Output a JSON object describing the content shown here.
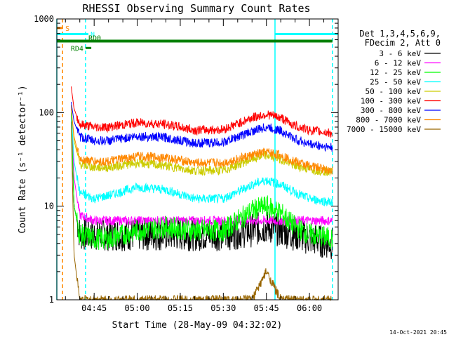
{
  "chart_data": {
    "type": "line",
    "title": "RHESSI Observing Summary Count Rates",
    "xlabel": "Start Time (28-May-09 04:32:02)",
    "ylabel": "Count Rate (s⁻¹ detector⁻¹)",
    "xlim": [
      "04:32",
      "06:10"
    ],
    "ylim": [
      1,
      1000
    ],
    "yscale": "log",
    "x_ticks": [
      "04:45",
      "05:00",
      "05:15",
      "05:30",
      "05:45",
      "06:00"
    ],
    "y_ticks": [
      "1",
      "10",
      "100",
      "1000"
    ],
    "grid": false,
    "legend_position": "right",
    "legend_header": [
      "Det 1,3,4,5,6,9,",
      "FDecim 2, Att 0"
    ],
    "footer_timestamp": "14-Oct-2021 20:45",
    "series": [
      {
        "name": "3 - 6 keV",
        "color": "#000000",
        "x": [
          "04:37",
          "04:38",
          "04:40",
          "04:45",
          "04:50",
          "05:00",
          "05:10",
          "05:20",
          "05:30",
          "05:40",
          "05:45",
          "05:50",
          "05:55",
          "06:00",
          "06:08"
        ],
        "y": [
          100,
          10,
          5,
          5,
          5,
          5,
          5,
          5,
          5,
          5.5,
          6,
          5.5,
          5,
          4.5,
          4
        ]
      },
      {
        "name": "6 - 12 keV",
        "color": "#ff00ff",
        "x": [
          "04:37",
          "04:38",
          "04:40",
          "04:45",
          "04:50",
          "05:00",
          "05:10",
          "05:20",
          "05:30",
          "05:40",
          "05:45",
          "05:50",
          "05:55",
          "06:00",
          "06:08"
        ],
        "y": [
          120,
          20,
          8,
          7,
          7,
          7,
          7,
          7,
          7,
          7,
          7,
          7,
          7,
          7,
          7
        ]
      },
      {
        "name": "12 - 25 keV",
        "color": "#00ff00",
        "x": [
          "04:37",
          "04:38",
          "04:40",
          "04:45",
          "04:50",
          "05:00",
          "05:10",
          "05:20",
          "05:30",
          "05:40",
          "05:45",
          "05:50",
          "05:55",
          "06:00",
          "06:08"
        ],
        "y": [
          100,
          10,
          5,
          4.5,
          4.5,
          5.5,
          6,
          5.5,
          5.5,
          9,
          10,
          8.5,
          6,
          5,
          4.5
        ]
      },
      {
        "name": "25 - 50 keV",
        "color": "#00ffff",
        "x": [
          "04:37",
          "04:38",
          "04:40",
          "04:45",
          "04:50",
          "05:00",
          "05:10",
          "05:20",
          "05:30",
          "05:40",
          "05:45",
          "05:50",
          "05:55",
          "06:00",
          "06:08"
        ],
        "y": [
          110,
          30,
          14,
          12,
          13,
          16,
          15,
          12,
          12,
          17,
          19,
          17,
          14,
          12,
          11
        ]
      },
      {
        "name": "50 - 100 keV",
        "color": "#cccc00",
        "x": [
          "04:37",
          "04:38",
          "04:40",
          "04:45",
          "04:50",
          "05:00",
          "05:10",
          "05:20",
          "05:30",
          "05:40",
          "05:45",
          "05:50",
          "05:55",
          "06:00",
          "06:08"
        ],
        "y": [
          120,
          50,
          28,
          26,
          26,
          29,
          27,
          24,
          24,
          32,
          35,
          32,
          27,
          25,
          23
        ]
      },
      {
        "name": "100 - 300 keV",
        "color": "#ff0000",
        "x": [
          "04:37",
          "04:38",
          "04:40",
          "04:45",
          "04:50",
          "05:00",
          "05:10",
          "05:20",
          "05:30",
          "05:40",
          "05:45",
          "05:50",
          "05:55",
          "06:00",
          "06:08"
        ],
        "y": [
          190,
          110,
          75,
          70,
          70,
          78,
          75,
          65,
          66,
          88,
          96,
          88,
          72,
          65,
          60
        ]
      },
      {
        "name": "300 - 800 keV",
        "color": "#0000ff",
        "x": [
          "04:37",
          "04:38",
          "04:40",
          "04:45",
          "04:50",
          "05:00",
          "05:10",
          "05:20",
          "05:30",
          "05:40",
          "05:45",
          "05:50",
          "05:55",
          "06:00",
          "06:08"
        ],
        "y": [
          130,
          80,
          55,
          50,
          50,
          56,
          54,
          47,
          48,
          63,
          70,
          64,
          52,
          46,
          42
        ]
      },
      {
        "name": "800 - 7000 keV",
        "color": "#ff8800",
        "x": [
          "04:37",
          "04:38",
          "04:40",
          "04:45",
          "04:50",
          "05:00",
          "05:10",
          "05:20",
          "05:30",
          "05:40",
          "05:45",
          "05:50",
          "05:55",
          "06:00",
          "06:08"
        ],
        "y": [
          110,
          55,
          32,
          30,
          30,
          34,
          33,
          29,
          29,
          35,
          38,
          35,
          30,
          27,
          24
        ]
      },
      {
        "name": "7000 - 15000 keV",
        "color": "#996600",
        "x": [
          "04:37",
          "04:38",
          "04:40",
          "05:40",
          "05:45",
          "05:50",
          "06:08"
        ],
        "y": [
          80,
          3,
          1,
          1,
          2,
          1,
          1
        ]
      }
    ],
    "annotations": [
      {
        "label": "S",
        "color": "#ff8800",
        "x": [
          "04:32",
          "04:34"
        ],
        "y": 800
      },
      {
        "label": "N",
        "color": "#00ffff",
        "x": [
          "04:32",
          "04:43"
        ],
        "y": 690
      },
      {
        "label": "RD0",
        "color": "#008000",
        "x": [
          "04:32",
          "06:08"
        ],
        "y": 580
      },
      {
        "label": "RD4",
        "color": "#008000",
        "x": [
          "04:42",
          "04:44"
        ],
        "y": 490
      }
    ],
    "vertical_markers": [
      {
        "x": "04:34",
        "color": "#ff8800",
        "style": "dashed"
      },
      {
        "x": "04:42",
        "color": "#00ffff",
        "style": "dashed"
      },
      {
        "x": "05:48",
        "color": "#00ffff",
        "style": "solid"
      },
      {
        "x": "06:08",
        "color": "#00ffff",
        "style": "dashed"
      },
      {
        "x": "04:32",
        "color": "#00ffff",
        "style": "solid"
      }
    ]
  }
}
